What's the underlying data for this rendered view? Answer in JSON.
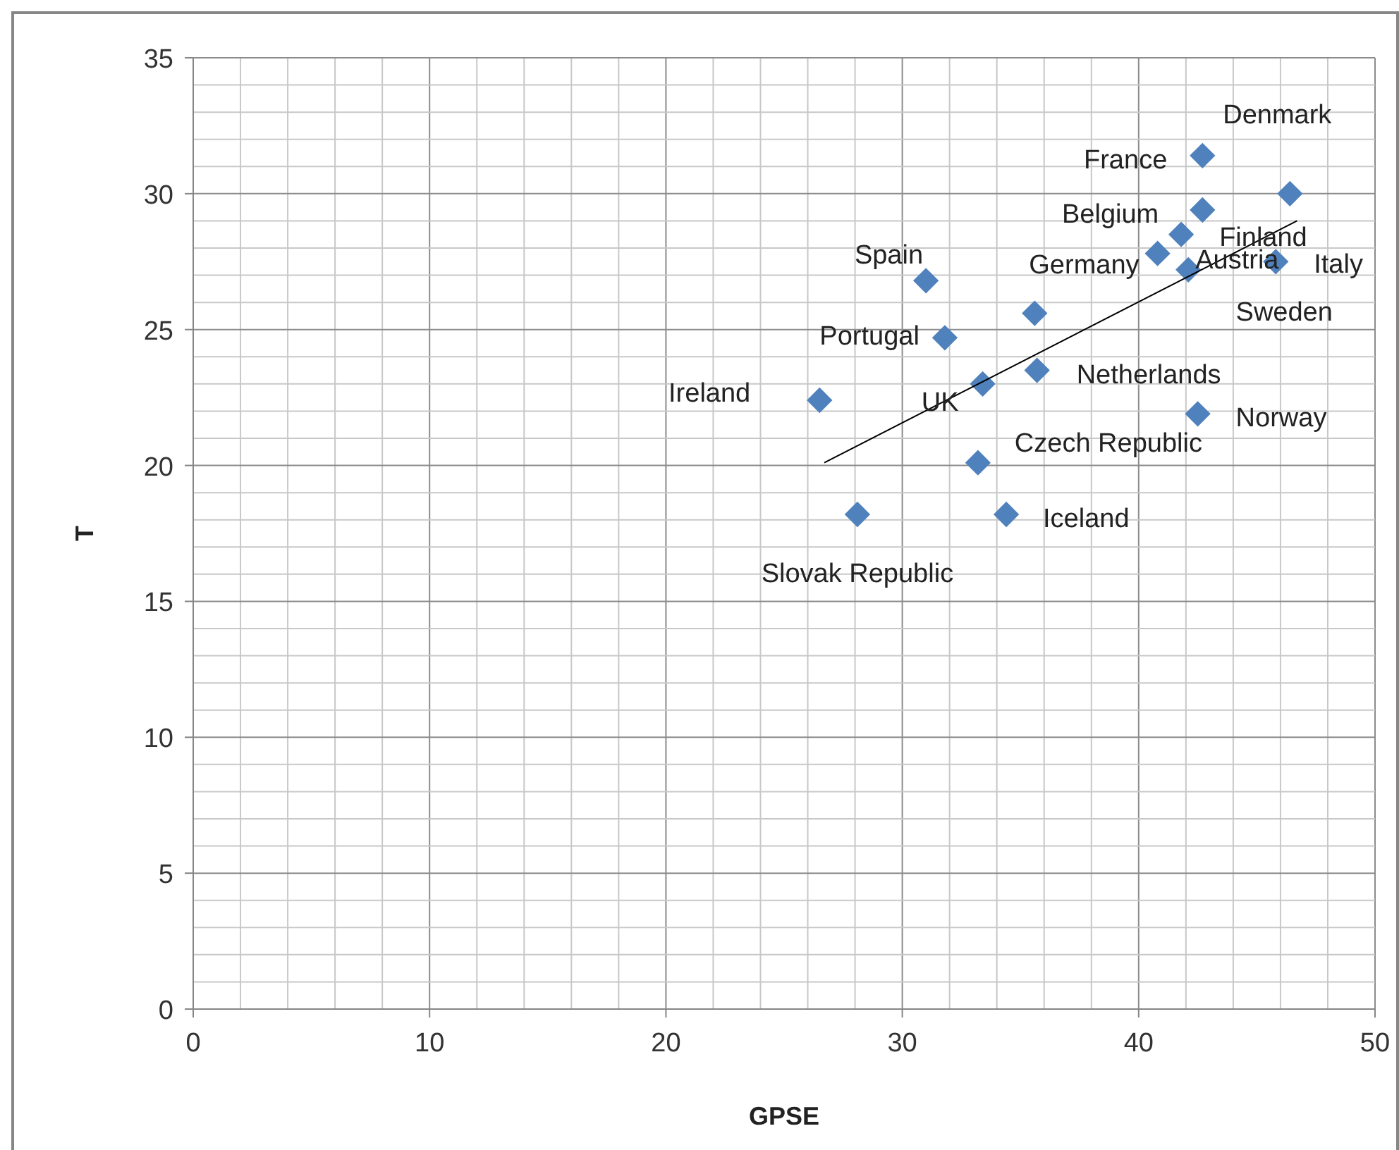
{
  "chart_data": {
    "type": "scatter",
    "xlabel": "GPSE",
    "ylabel": "T",
    "xlim": [
      0,
      50
    ],
    "ylim": [
      0,
      35
    ],
    "xticks": [
      0,
      10,
      20,
      30,
      40,
      50
    ],
    "yticks": [
      0,
      5,
      10,
      15,
      20,
      25,
      30,
      35
    ],
    "grid": true,
    "marker": "diamond",
    "series": [
      {
        "color": "#4f81bd",
        "x": [
          46.4,
          42.7,
          42.7,
          41.8,
          42.1,
          45.8,
          35.6,
          40.8,
          31.0,
          31.8,
          26.5,
          33.4,
          35.7,
          42.5,
          33.2,
          34.4,
          28.1
        ],
        "values": [
          30.0,
          31.4,
          29.4,
          28.5,
          27.2,
          27.5,
          25.6,
          27.8,
          26.8,
          24.7,
          22.4,
          23.0,
          23.5,
          21.9,
          20.1,
          18.2,
          18.2
        ]
      },
      {
        "type": "line",
        "color": "#000000",
        "marker": "none",
        "x": [
          26.7,
          46.7
        ],
        "values": [
          20.1,
          29.0
        ]
      }
    ],
    "annotations": [
      {
        "text": "Denmark",
        "x": 46.4,
        "y": 30.0
      },
      {
        "text": "France",
        "x": 42.7,
        "y": 31.4
      },
      {
        "text": "Belgium",
        "x": 42.7,
        "y": 29.4
      },
      {
        "text": "Finland",
        "x": 41.8,
        "y": 28.5
      },
      {
        "text": "Austria",
        "x": 42.1,
        "y": 27.2
      },
      {
        "text": "Italy",
        "x": 45.8,
        "y": 27.5
      },
      {
        "text": "Sweden",
        "x": 45.8,
        "y": 27.5
      },
      {
        "text": "Germany",
        "x": 40.8,
        "y": 27.8
      },
      {
        "text": "Spain",
        "x": 31.0,
        "y": 26.8
      },
      {
        "text": "Portugal",
        "x": 31.8,
        "y": 24.7
      },
      {
        "text": "Ireland",
        "x": 26.5,
        "y": 22.4
      },
      {
        "text": "UK",
        "x": 33.4,
        "y": 23.0
      },
      {
        "text": "Netherlands",
        "x": 35.7,
        "y": 23.5
      },
      {
        "text": "Norway",
        "x": 42.5,
        "y": 21.9
      },
      {
        "text": "Czech Republic",
        "x": 33.2,
        "y": 20.1
      },
      {
        "text": "Iceland",
        "x": 34.4,
        "y": 18.2
      },
      {
        "text": "Slovak Republic",
        "x": 28.1,
        "y": 18.2
      }
    ]
  }
}
